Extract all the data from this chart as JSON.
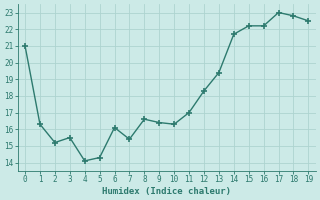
{
  "x": [
    0,
    1,
    2,
    3,
    4,
    5,
    6,
    7,
    8,
    9,
    10,
    11,
    12,
    13,
    14,
    15,
    16,
    17,
    18,
    19
  ],
  "y": [
    21.0,
    16.3,
    15.2,
    15.5,
    14.1,
    14.3,
    16.1,
    15.4,
    16.6,
    16.4,
    16.3,
    17.0,
    18.3,
    19.4,
    21.7,
    22.2,
    22.2,
    23.0,
    22.8,
    22.5
  ],
  "line_color": "#2d7a6e",
  "marker": "+",
  "marker_size": 4,
  "marker_lw": 1.2,
  "line_width": 1.0,
  "bg_color": "#cceae7",
  "grid_color": "#aed4d0",
  "xlabel": "Humidex (Indice chaleur)",
  "xlim": [
    -0.5,
    19.5
  ],
  "ylim": [
    13.5,
    23.5
  ],
  "yticks": [
    14,
    15,
    16,
    17,
    18,
    19,
    20,
    21,
    22,
    23
  ],
  "xticks": [
    0,
    1,
    2,
    3,
    4,
    5,
    6,
    7,
    8,
    9,
    10,
    11,
    12,
    13,
    14,
    15,
    16,
    17,
    18,
    19
  ],
  "tick_fontsize": 5.5,
  "xlabel_fontsize": 6.5
}
